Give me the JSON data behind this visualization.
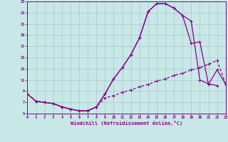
{
  "xlabel": "Windchill (Refroidissement éolien,°C)",
  "bg_color": "#c8e8e8",
  "line_color": "#880088",
  "grid_color": "#a8c8c8",
  "xlim_min": 0,
  "xlim_max": 23,
  "ylim_min": 5,
  "ylim_max": 25,
  "xticks": [
    0,
    1,
    2,
    3,
    4,
    5,
    6,
    7,
    8,
    9,
    10,
    11,
    12,
    13,
    14,
    15,
    16,
    17,
    18,
    19,
    20,
    21,
    22,
    23
  ],
  "yticks": [
    5,
    7,
    9,
    11,
    13,
    15,
    17,
    19,
    21,
    23,
    25
  ],
  "curve1_x": [
    0,
    1,
    2,
    3,
    4,
    5,
    6,
    7,
    8,
    9,
    10,
    11,
    12,
    13,
    14,
    15,
    16,
    17,
    18,
    19,
    20,
    21,
    22,
    23
  ],
  "curve1_y": [
    8.5,
    7.2,
    7.0,
    6.8,
    6.2,
    5.8,
    5.5,
    5.5,
    6.2,
    8.5,
    11.2,
    13.2,
    15.5,
    18.5,
    23.2,
    24.6,
    24.6,
    23.8,
    22.5,
    21.5,
    11.0,
    10.3,
    10.0,
    null
  ],
  "curve2_x": [
    0,
    1,
    2,
    3,
    4,
    5,
    6,
    7,
    8,
    9,
    10,
    11,
    12,
    13,
    14,
    15,
    16,
    17,
    18,
    19,
    20,
    21,
    22,
    23
  ],
  "curve2_y": [
    8.5,
    7.2,
    7.0,
    6.8,
    6.2,
    5.8,
    5.5,
    5.5,
    6.2,
    8.5,
    11.2,
    13.2,
    15.5,
    18.5,
    23.2,
    24.6,
    24.6,
    23.8,
    22.5,
    17.5,
    17.8,
    10.2,
    12.8,
    10.2
  ],
  "curve3_x": [
    0,
    1,
    2,
    3,
    4,
    5,
    6,
    7,
    8,
    9,
    10,
    11,
    12,
    13,
    14,
    15,
    16,
    17,
    18,
    19,
    20,
    21,
    22,
    23
  ],
  "curve3_y": [
    8.5,
    7.2,
    7.0,
    6.8,
    6.2,
    5.8,
    5.5,
    5.5,
    6.2,
    7.8,
    8.2,
    8.8,
    9.2,
    9.8,
    10.2,
    10.8,
    11.2,
    11.8,
    12.2,
    12.8,
    13.2,
    13.8,
    14.5,
    10.2
  ]
}
